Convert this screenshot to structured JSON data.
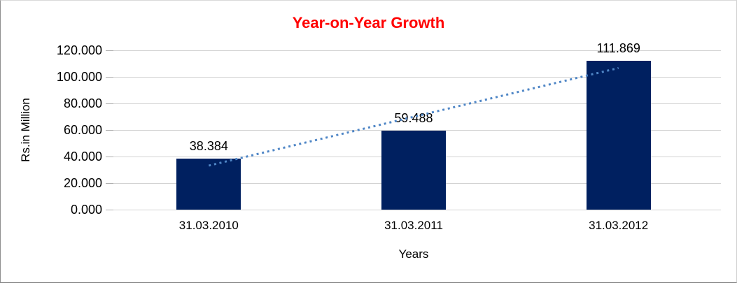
{
  "chart_data": {
    "type": "bar",
    "title": "Year-on-Year Growth",
    "xlabel": "Years",
    "ylabel": "Rs.in Million",
    "categories": [
      "31.03.2010",
      "31.03.2011",
      "31.03.2012"
    ],
    "values": [
      38.384,
      59.488,
      111.869
    ],
    "data_labels": [
      "38.384",
      "59.488",
      "111.869"
    ],
    "y_ticks": [
      0,
      20,
      40,
      60,
      80,
      100,
      120
    ],
    "y_tick_labels": [
      "0.000",
      "20.000",
      "40.000",
      "60.000",
      "80.000",
      "100.000",
      "120.000"
    ],
    "ylim": [
      0,
      120
    ],
    "grid": true,
    "legend": "none",
    "trendline": {
      "type": "linear",
      "style": "dotted"
    },
    "colors": {
      "bar": "#002060",
      "trendline": "#4f86c6",
      "title": "#ff0000",
      "gridline": "#d2d2d2",
      "tickmark": "#aeaeae",
      "text": "#000000"
    }
  }
}
